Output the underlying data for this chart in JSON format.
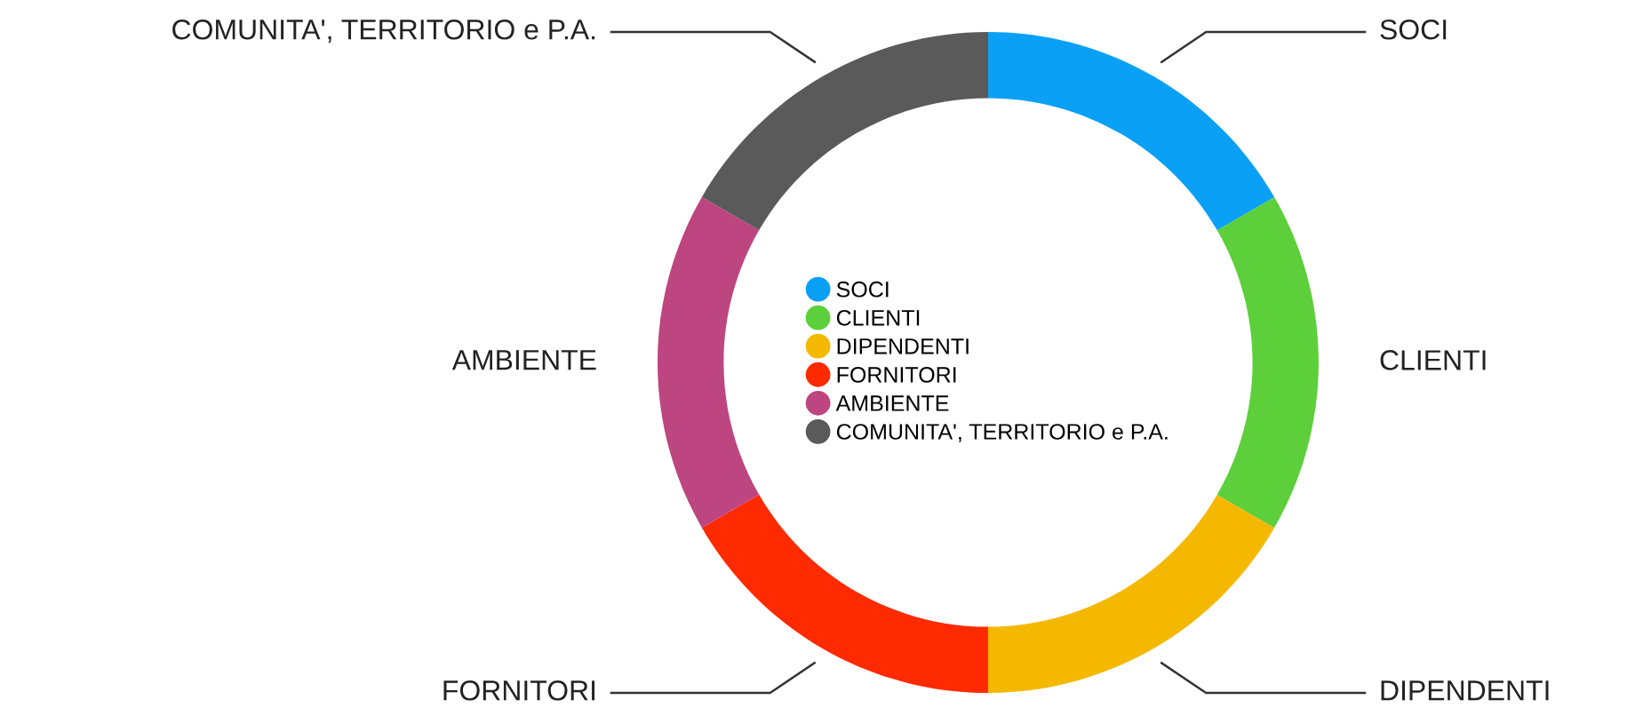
{
  "chart_data": {
    "type": "donut",
    "categories": [
      "SOCI",
      "CLIENTI",
      "DIPENDENTI",
      "FORNITORI",
      "AMBIENTE",
      "COMUNITA', TERRITORIO e P.A."
    ],
    "values": [
      16.67,
      16.67,
      16.66,
      16.67,
      16.67,
      16.66
    ],
    "colors": [
      "#0aa0f5",
      "#5ccf3a",
      "#f5b800",
      "#ff2a00",
      "#bd4580",
      "#5a5a5a"
    ],
    "legend": "center"
  }
}
